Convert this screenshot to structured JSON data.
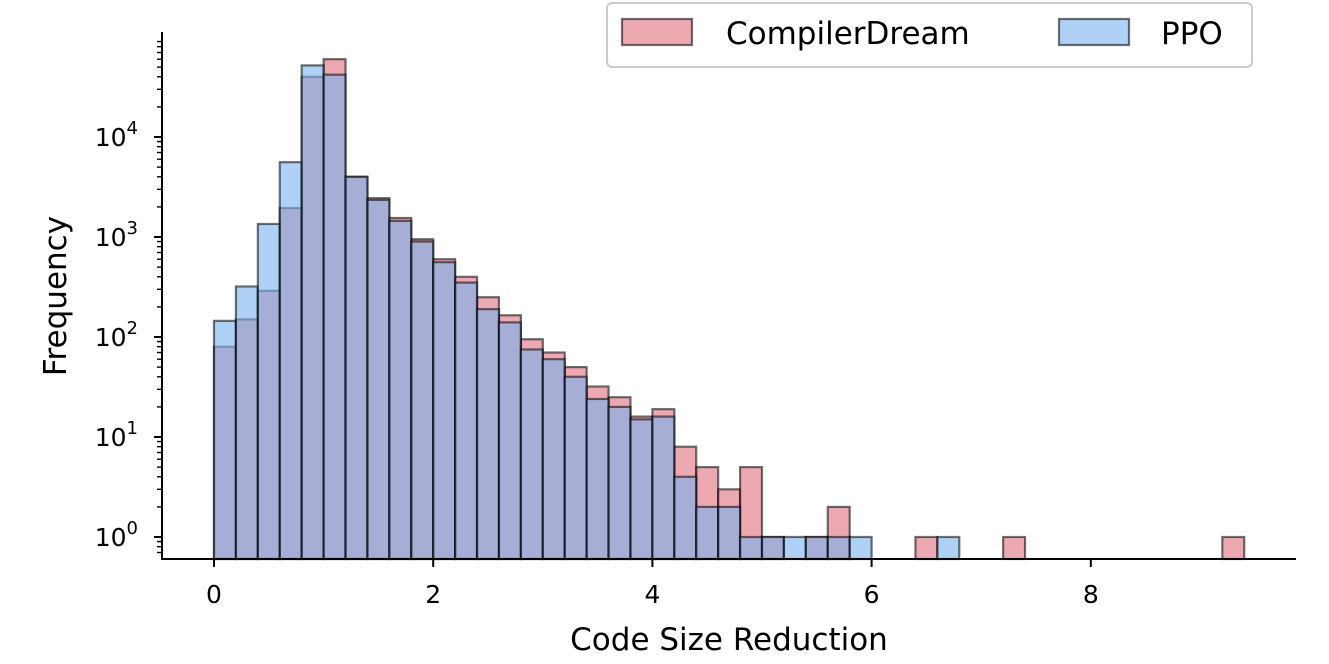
{
  "chart_data": {
    "type": "bar",
    "xlabel": "Code Size Reduction",
    "ylabel": "Frequency",
    "yscale": "log",
    "xlim": [
      -0.48,
      9.6
    ],
    "ylim": [
      0.57,
      100000
    ],
    "bin_width": 0.2,
    "x_ticks": [
      0,
      2,
      4,
      6,
      8
    ],
    "y_ticks": [
      {
        "value": 1,
        "base": "10",
        "exp": "0"
      },
      {
        "value": 10,
        "base": "10",
        "exp": "1"
      },
      {
        "value": 100,
        "base": "10",
        "exp": "2"
      },
      {
        "value": 1000,
        "base": "10",
        "exp": "3"
      },
      {
        "value": 10000,
        "base": "10",
        "exp": "4"
      }
    ],
    "legend": {
      "position": "top-right"
    },
    "grid": false,
    "series": [
      {
        "name": "CompilerDream",
        "color": "#e0707e",
        "bins": [
          {
            "x": 0.0,
            "y": 80
          },
          {
            "x": 0.2,
            "y": 150
          },
          {
            "x": 0.4,
            "y": 290
          },
          {
            "x": 0.6,
            "y": 1950
          },
          {
            "x": 0.8,
            "y": 40000
          },
          {
            "x": 1.0,
            "y": 60000
          },
          {
            "x": 1.2,
            "y": 4000
          },
          {
            "x": 1.4,
            "y": 2450
          },
          {
            "x": 1.6,
            "y": 1550
          },
          {
            "x": 1.8,
            "y": 950
          },
          {
            "x": 2.0,
            "y": 600
          },
          {
            "x": 2.2,
            "y": 400
          },
          {
            "x": 2.4,
            "y": 250
          },
          {
            "x": 2.6,
            "y": 165
          },
          {
            "x": 2.8,
            "y": 95
          },
          {
            "x": 3.0,
            "y": 70
          },
          {
            "x": 3.2,
            "y": 50
          },
          {
            "x": 3.4,
            "y": 32
          },
          {
            "x": 3.6,
            "y": 25
          },
          {
            "x": 3.8,
            "y": 16
          },
          {
            "x": 4.0,
            "y": 19
          },
          {
            "x": 4.2,
            "y": 8
          },
          {
            "x": 4.4,
            "y": 5
          },
          {
            "x": 4.6,
            "y": 3
          },
          {
            "x": 4.8,
            "y": 5
          },
          {
            "x": 5.0,
            "y": 1
          },
          {
            "x": 5.4,
            "y": 1
          },
          {
            "x": 5.6,
            "y": 2
          },
          {
            "x": 6.4,
            "y": 1
          },
          {
            "x": 7.2,
            "y": 1
          },
          {
            "x": 9.2,
            "y": 1
          }
        ]
      },
      {
        "name": "PPO",
        "color": "#7ab3ef",
        "bins": [
          {
            "x": 0.0,
            "y": 145
          },
          {
            "x": 0.2,
            "y": 320
          },
          {
            "x": 0.4,
            "y": 1350
          },
          {
            "x": 0.6,
            "y": 5600
          },
          {
            "x": 0.8,
            "y": 52000
          },
          {
            "x": 1.0,
            "y": 42000
          },
          {
            "x": 1.2,
            "y": 4000
          },
          {
            "x": 1.4,
            "y": 2350
          },
          {
            "x": 1.6,
            "y": 1450
          },
          {
            "x": 1.8,
            "y": 900
          },
          {
            "x": 2.0,
            "y": 560
          },
          {
            "x": 2.2,
            "y": 350
          },
          {
            "x": 2.4,
            "y": 190
          },
          {
            "x": 2.6,
            "y": 140
          },
          {
            "x": 2.8,
            "y": 75
          },
          {
            "x": 3.0,
            "y": 60
          },
          {
            "x": 3.2,
            "y": 40
          },
          {
            "x": 3.4,
            "y": 24
          },
          {
            "x": 3.6,
            "y": 20
          },
          {
            "x": 3.8,
            "y": 15
          },
          {
            "x": 4.0,
            "y": 16
          },
          {
            "x": 4.2,
            "y": 4
          },
          {
            "x": 4.4,
            "y": 2
          },
          {
            "x": 4.6,
            "y": 2
          },
          {
            "x": 4.8,
            "y": 1
          },
          {
            "x": 5.0,
            "y": 1
          },
          {
            "x": 5.2,
            "y": 1
          },
          {
            "x": 5.4,
            "y": 1
          },
          {
            "x": 5.6,
            "y": 1
          },
          {
            "x": 5.8,
            "y": 1
          },
          {
            "x": 6.6,
            "y": 1
          }
        ]
      }
    ]
  }
}
